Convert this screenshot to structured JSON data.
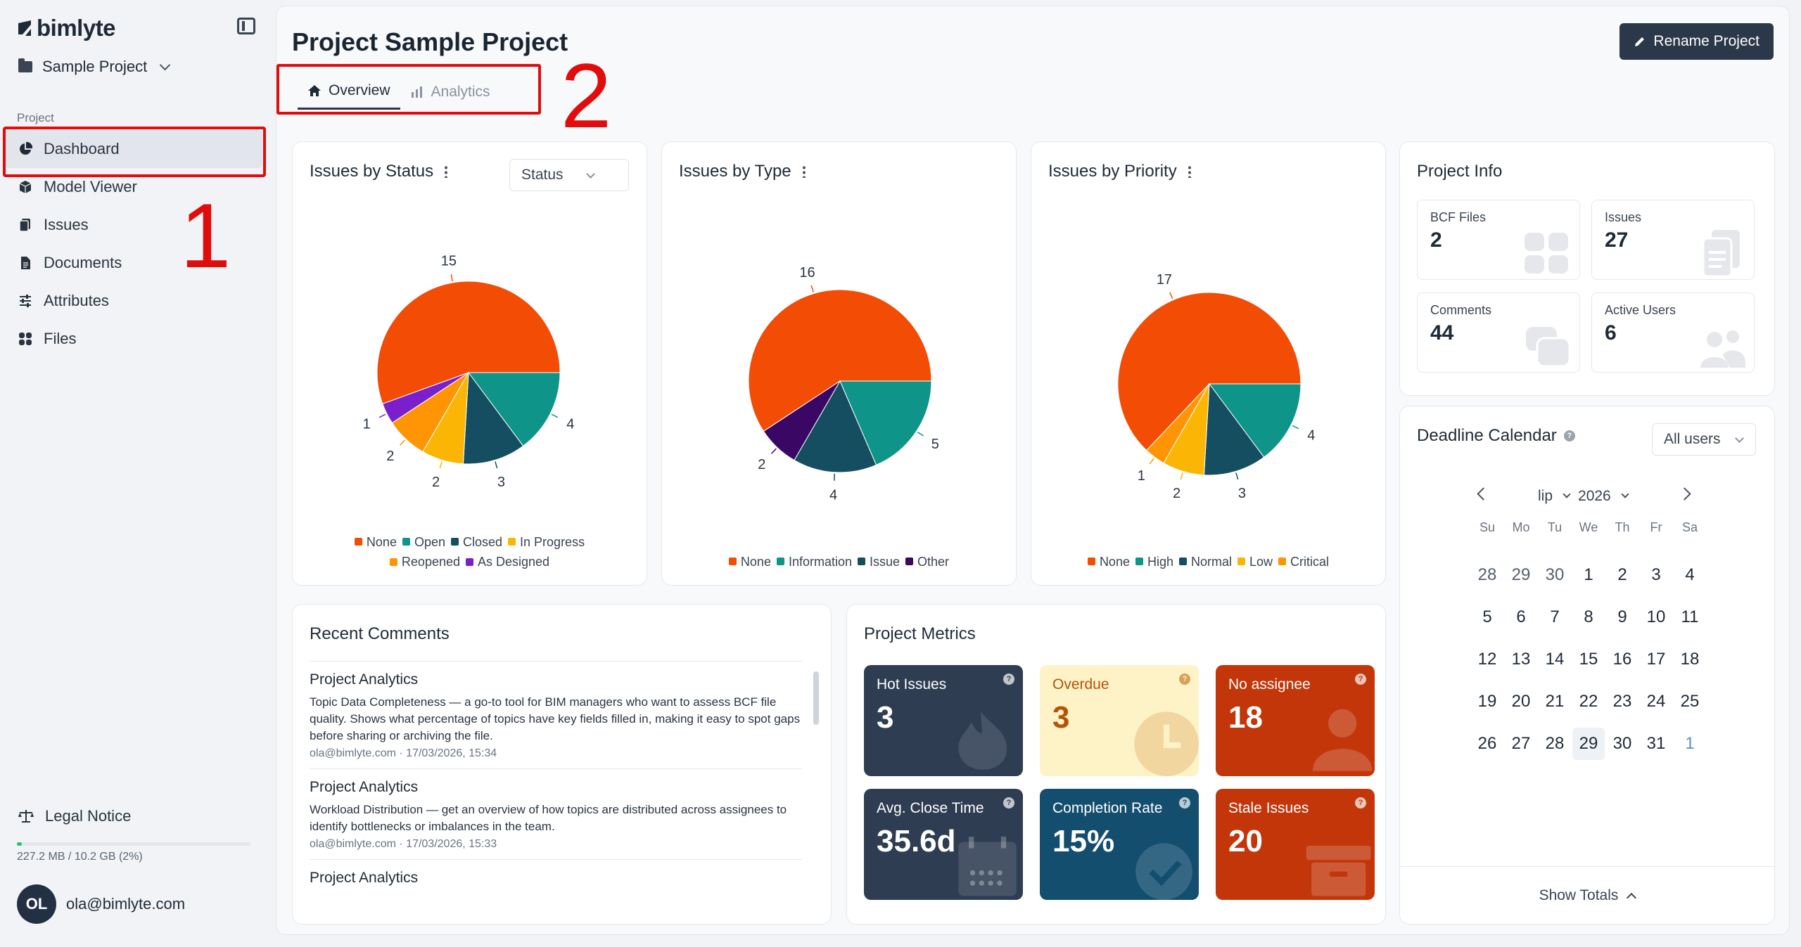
{
  "app": {
    "logo_text": "bimlyte",
    "project_name": "Sample Project",
    "section_label": "Project",
    "nav": [
      {
        "label": "Dashboard",
        "icon": "pie-icon",
        "active": true
      },
      {
        "label": "Model Viewer",
        "icon": "cube-icon"
      },
      {
        "label": "Issues",
        "icon": "clipboard-icon"
      },
      {
        "label": "Documents",
        "icon": "document-icon"
      },
      {
        "label": "Attributes",
        "icon": "sliders-icon"
      },
      {
        "label": "Files",
        "icon": "grid-icon"
      }
    ],
    "legal_label": "Legal Notice",
    "storage_text": "227.2 MB / 10.2 GB (2%)",
    "storage_fraction": 0.02,
    "user_initials": "OL",
    "user_email": "ola@bimlyte.com"
  },
  "annotations": {
    "one": "1",
    "two": "2"
  },
  "header": {
    "title": "Project Sample Project",
    "rename_label": "Rename Project",
    "tabs": [
      {
        "label": "Overview",
        "icon": "home-icon",
        "active": true
      },
      {
        "label": "Analytics",
        "icon": "bar-chart-icon",
        "active": false
      }
    ]
  },
  "status_filter": "Status",
  "chart_data": [
    {
      "type": "pie",
      "title": "Issues by Status",
      "categories": [
        "None",
        "Open",
        "Closed",
        "In Progress",
        "Reopened",
        "As Designed"
      ],
      "values": [
        15,
        4,
        3,
        2,
        2,
        1
      ],
      "colors": [
        "#f24c05",
        "#0e9488",
        "#154d61",
        "#fbb605",
        "#ff9505",
        "#7a1fcc"
      ],
      "legend": "bottom"
    },
    {
      "type": "pie",
      "title": "Issues by Type",
      "categories": [
        "None",
        "Information",
        "Issue",
        "Other"
      ],
      "values": [
        16,
        5,
        4,
        2
      ],
      "colors": [
        "#f24c05",
        "#0e9488",
        "#154d61",
        "#3b0764"
      ],
      "legend": "bottom"
    },
    {
      "type": "pie",
      "title": "Issues by Priority",
      "categories": [
        "None",
        "High",
        "Normal",
        "Low",
        "Critical"
      ],
      "values": [
        17,
        4,
        3,
        2,
        1
      ],
      "colors": [
        "#f24c05",
        "#0e9488",
        "#154d61",
        "#fbb605",
        "#ff9505"
      ],
      "legend": "bottom"
    }
  ],
  "project_info": {
    "title": "Project Info",
    "tiles": [
      {
        "label": "BCF Files",
        "value": "2"
      },
      {
        "label": "Issues",
        "value": "27"
      },
      {
        "label": "Comments",
        "value": "44"
      },
      {
        "label": "Active Users",
        "value": "6"
      }
    ]
  },
  "calendar": {
    "title": "Deadline Calendar",
    "help": "?",
    "user_filter": "All users",
    "month": "lip",
    "year": "2026",
    "weekdays": [
      "Su",
      "Mo",
      "Tu",
      "We",
      "Th",
      "Fr",
      "Sa"
    ],
    "days": [
      "28",
      "29",
      "30",
      "1",
      "2",
      "3",
      "4",
      "5",
      "6",
      "7",
      "8",
      "9",
      "10",
      "11",
      "12",
      "13",
      "14",
      "15",
      "16",
      "17",
      "18",
      "19",
      "20",
      "21",
      "22",
      "23",
      "24",
      "25",
      "26",
      "27",
      "28",
      "29",
      "30",
      "31",
      "1"
    ],
    "today": "29",
    "footer": "Show Totals"
  },
  "recent_comments": {
    "title": "Recent Comments",
    "items": [
      {
        "title": "Project Analytics",
        "body": "Topic Data Completeness — a go-to tool for BIM managers who want to assess BCF file quality. Shows what percentage of topics have key fields filled in, making it easy to spot gaps before sharing or archiving the file.",
        "meta": "ola@bimlyte.com · 17/03/2026, 15:34"
      },
      {
        "title": "Project Analytics",
        "body": "Workload Distribution — get an overview of how topics are distributed across assignees to identify bottlenecks or imbalances in the team.",
        "meta": "ola@bimlyte.com · 17/03/2026, 15:33"
      },
      {
        "title": "Project Analytics",
        "body": "",
        "meta": ""
      }
    ]
  },
  "metrics": {
    "title": "Project Metrics",
    "help": "?",
    "items": [
      {
        "label": "Hot Issues",
        "value": "3",
        "bg": "#2e3d52",
        "fg": "#ffffff"
      },
      {
        "label": "Overdue",
        "value": "3",
        "bg": "#fef3c7",
        "fg": "#b45309"
      },
      {
        "label": "No assignee",
        "value": "18",
        "bg": "#c2360a",
        "fg": "#ffffff"
      },
      {
        "label": "Avg. Close Time",
        "value": "35.6d",
        "bg": "#2e3d52",
        "fg": "#ffffff"
      },
      {
        "label": "Completion Rate",
        "value": "15%",
        "bg": "#134e6f",
        "fg": "#ffffff"
      },
      {
        "label": "Stale Issues",
        "value": "20",
        "bg": "#c2360a",
        "fg": "#ffffff"
      }
    ]
  }
}
